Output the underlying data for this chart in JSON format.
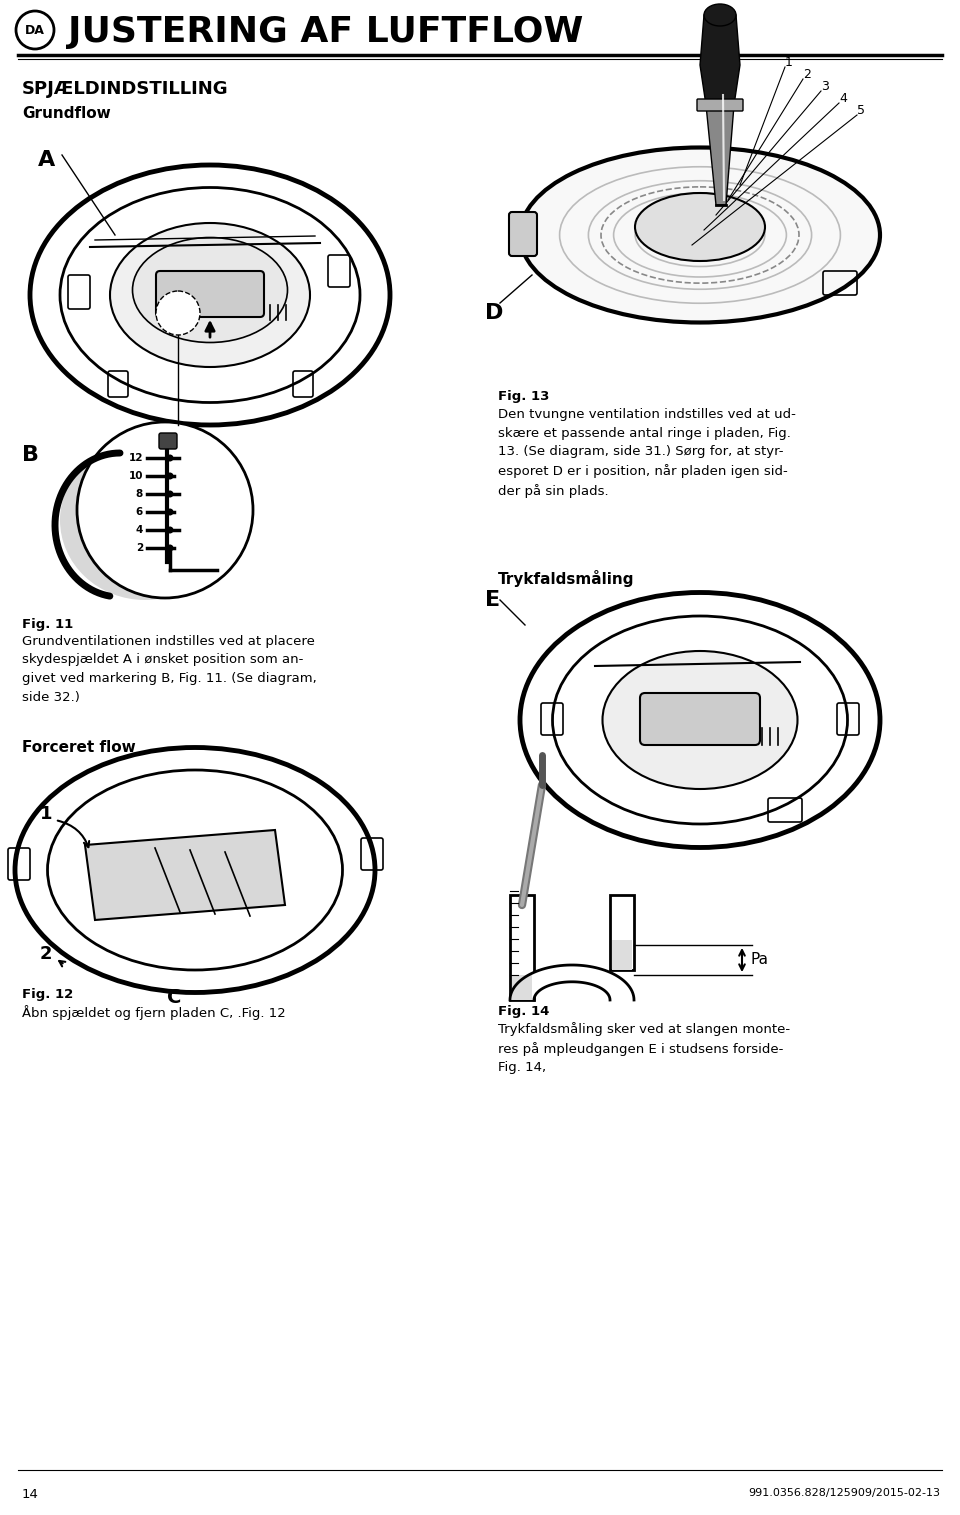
{
  "bg_color": "#ffffff",
  "page_width": 9.6,
  "page_height": 15.15,
  "header_da": "DA",
  "header_title": "JUSTERING AF LUFTFLOW",
  "header_title_fontsize": 26,
  "section1_heading": "SPJÆLDINDSTILLING",
  "section1_sub": "Grundflow",
  "label_A": "A",
  "label_B": "B",
  "label_C": "C",
  "label_D": "D",
  "label_E": "E",
  "fig11_label": "Fig. 11",
  "fig11_text": "Grundventilationen indstilles ved at placere\nskydespjældet A i ønsket position som an-\ngivet ved markering B, Fig. 11. (Se diagram,\nside 32.)",
  "forceret_heading": "Forceret flow",
  "fig12_label": "Fig. 12",
  "fig12_text": "Åbn spjældet og fjern pladen C, .Fig. 12",
  "fig13_label": "Fig. 13",
  "fig13_text": "Den tvungne ventilation indstilles ved at ud-\nskære et passende antal ringe i pladen, Fig.\n13. (Se diagram, side 31.) Sørg for, at styr-\nesporet D er i position, når pladen igen sid-\nder på sin plads.",
  "trykfald_heading": "Trykfaldsmåling",
  "fig14_label": "Fig. 14",
  "fig14_text": "Trykfaldsmåling sker ved at slangen monte-\nres på mpleudgangen E i studsens forside-\nFig. 14,",
  "page_number": "14",
  "footer_right": "991.0356.828/125909/2015-02-13",
  "heading_fontsize": 13,
  "subheading_fontsize": 11,
  "body_fontsize": 9.5,
  "label_fontsize": 14
}
